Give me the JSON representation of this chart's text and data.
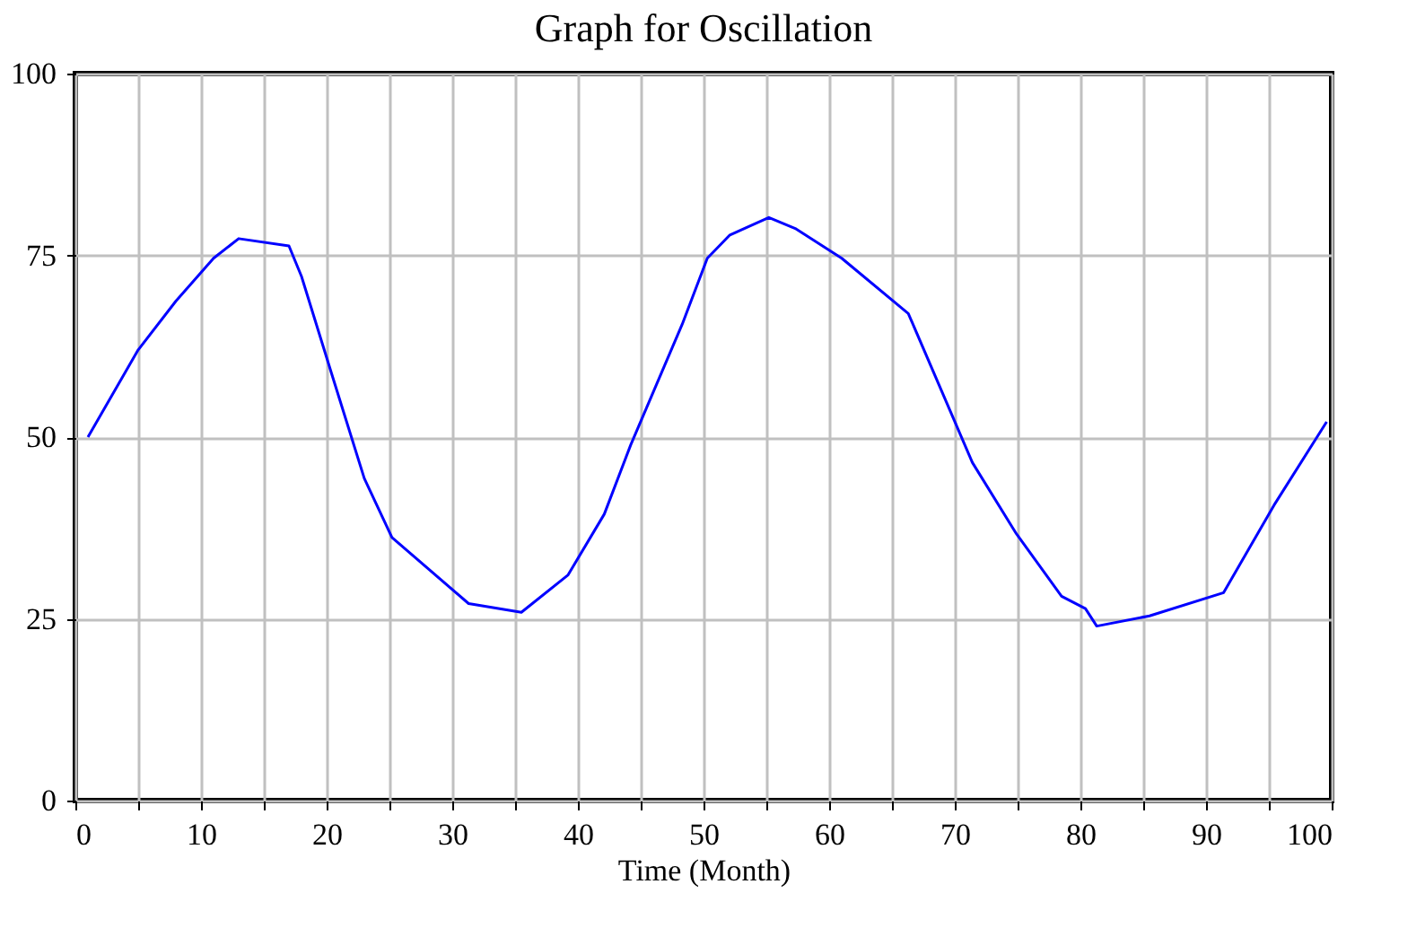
{
  "chart_data": {
    "type": "line",
    "title": "Graph for Oscillation",
    "xlabel": "Time (Month)",
    "x": [
      1,
      5,
      8,
      11,
      13,
      17,
      18,
      20.4,
      23,
      25.2,
      31.3,
      35.5,
      39.2,
      42.1,
      44.2,
      48.3,
      50.3,
      52.1,
      55.2,
      57.3,
      61,
      66.3,
      71.4,
      74.9,
      78.5,
      80.4,
      81.3,
      85.5,
      91.4,
      95.4,
      99.6
    ],
    "series": [
      {
        "color": "#0000ff",
        "values": [
          50,
          62,
          68.7,
          74.6,
          77.3,
          76.3,
          72.1,
          58.7,
          44.3,
          36.2,
          27.1,
          25.9,
          31,
          39.4,
          48.9,
          65.5,
          74.6,
          77.8,
          80.2,
          78.7,
          74.6,
          67,
          46.5,
          36.7,
          28.1,
          26.4,
          24,
          25.4,
          28.6,
          40.6,
          52.1
        ]
      }
    ],
    "xlim": [
      0,
      100
    ],
    "xticks": [
      0,
      {
        "value": 5,
        "label": null
      },
      10,
      {
        "value": 15,
        "label": null
      },
      20,
      {
        "value": 25,
        "label": null
      },
      30,
      {
        "value": 35,
        "label": null
      },
      40,
      {
        "value": 45,
        "label": null
      },
      50,
      {
        "value": 55,
        "label": null
      },
      60,
      {
        "value": 65,
        "label": null
      },
      70,
      {
        "value": 75,
        "label": null
      },
      80,
      {
        "value": 85,
        "label": null
      },
      90,
      {
        "value": 95,
        "label": null
      },
      100
    ],
    "ylim": [
      0,
      100
    ],
    "yticks": [
      0,
      25,
      50,
      75,
      100
    ],
    "grid": true,
    "marker": "none",
    "line_style": "solid"
  }
}
